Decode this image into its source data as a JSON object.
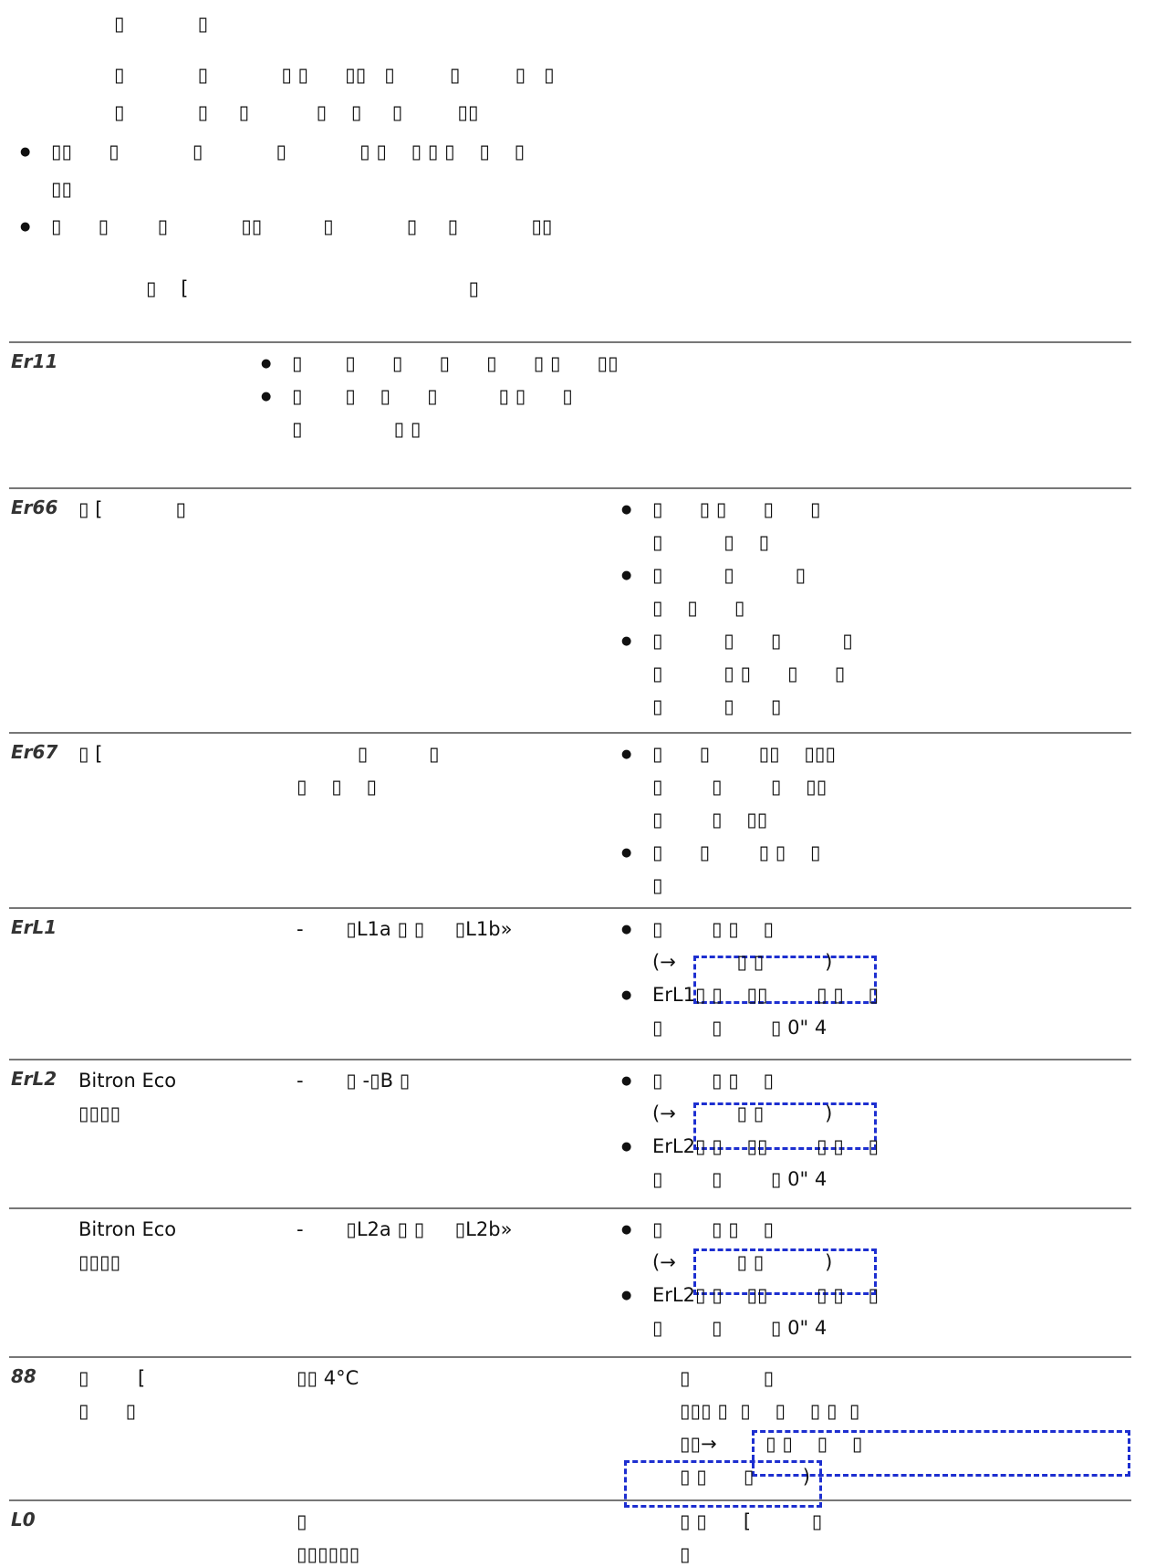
{
  "intro": {
    "heading": "▯            ▯",
    "paragraph": [
      "▯            ▯            ▯ ▯      ▯▯   ▯         ▯         ▯   ▯",
      "▯            ▯     ▯           ▯    ▯     ▯         ▯▯"
    ],
    "bullets": [
      [
        "▯▯      ▯            ▯            ▯            ▯ ▯    ▯ ▯ ▯    ▯    ▯",
        "▯▯"
      ],
      [
        "▯      ▯        ▯            ▯▯          ▯            ▯     ▯            ▯▯"
      ]
    ],
    "note": "▯    [                                              ▯"
  },
  "table": {
    "rows": [
      {
        "code": "Er11",
        "notes": [
          [
            "▯       ▯      ▯      ▯      ▯      ▯ ▯      ▯▯"
          ],
          [
            "▯       ▯    ▯      ▯          ▯ ▯      ▯",
            "▯               ▯ ▯"
          ]
        ]
      },
      {
        "code": "Er66",
        "cause": [
          "▯ [            ▯"
        ],
        "actions": [
          [
            "▯      ▯ ▯      ▯      ▯",
            "▯          ▯    ▯"
          ],
          [
            "▯          ▯          ▯",
            "▯    ▯      ▯"
          ],
          [
            "▯          ▯      ▯          ▯",
            "▯          ▯ ▯      ▯      ▯",
            "▯          ▯      ▯"
          ]
        ]
      },
      {
        "code": "Er67",
        "cause": [
          "▯ ["
        ],
        "condition": [
          "          ▯          ▯",
          "▯    ▯    ▯"
        ],
        "actions": [
          [
            "▯      ▯        ▯▯    ▯▯▯",
            "▯        ▯        ▯    ▯▯",
            "▯        ▯    ▯▯"
          ],
          [
            "▯      ▯        ▯ ▯    ▯",
            "▯"
          ]
        ]
      },
      {
        "code": "ErL1",
        "condition": [
          "-       ▯L1a ▯ ▯     ▯L1b»"
        ],
        "actions": [
          [
            "▯        ▯ ▯    ▯",
            "(→          ▯ ▯          )"
          ],
          [
            "ErL1▯ ▯    ▯▯        ▯ ▯    ▯",
            "▯        ▯        ▯ 0\" 4"
          ]
        ]
      },
      {
        "code": "ErL2",
        "cause": [
          "Bitron Eco",
          "▯▯▯▯"
        ],
        "condition": [
          "-       ▯ -▯B ▯"
        ],
        "actions": [
          [
            "▯        ▯ ▯    ▯",
            "(→          ▯ ▯          )"
          ],
          [
            "ErL2▯ ▯    ▯▯        ▯ ▯    ▯",
            "▯        ▯        ▯ 0\" 4"
          ]
        ]
      },
      {
        "cause": [
          "Bitron Eco",
          "▯▯▯▯"
        ],
        "condition": [
          "-       ▯L2a ▯ ▯     ▯L2b»"
        ],
        "actions": [
          [
            "▯        ▯ ▯    ▯",
            "(→          ▯ ▯          )"
          ],
          [
            "ErL2▯ ▯    ▯▯        ▯ ▯    ▯",
            "▯        ▯        ▯ 0\" 4"
          ]
        ]
      },
      {
        "code": "88",
        "cause": [
          "▯        [",
          "▯      ▯"
        ],
        "condition": [
          "▯▯ 4°C"
        ],
        "description": [
          "▯            ▯",
          "▯▯▯ ▯  ▯    ▯    ▯ ▯  ▯",
          "▯▯→        ▯ ▯    ▯    ▯",
          "▯ ▯      ▯        )"
        ]
      },
      {
        "code": "L0",
        "condition": [
          "▯",
          "▯▯▯▯▯▯"
        ],
        "description": [
          "▯ ▯      [          ▯",
          "▯"
        ]
      }
    ]
  }
}
